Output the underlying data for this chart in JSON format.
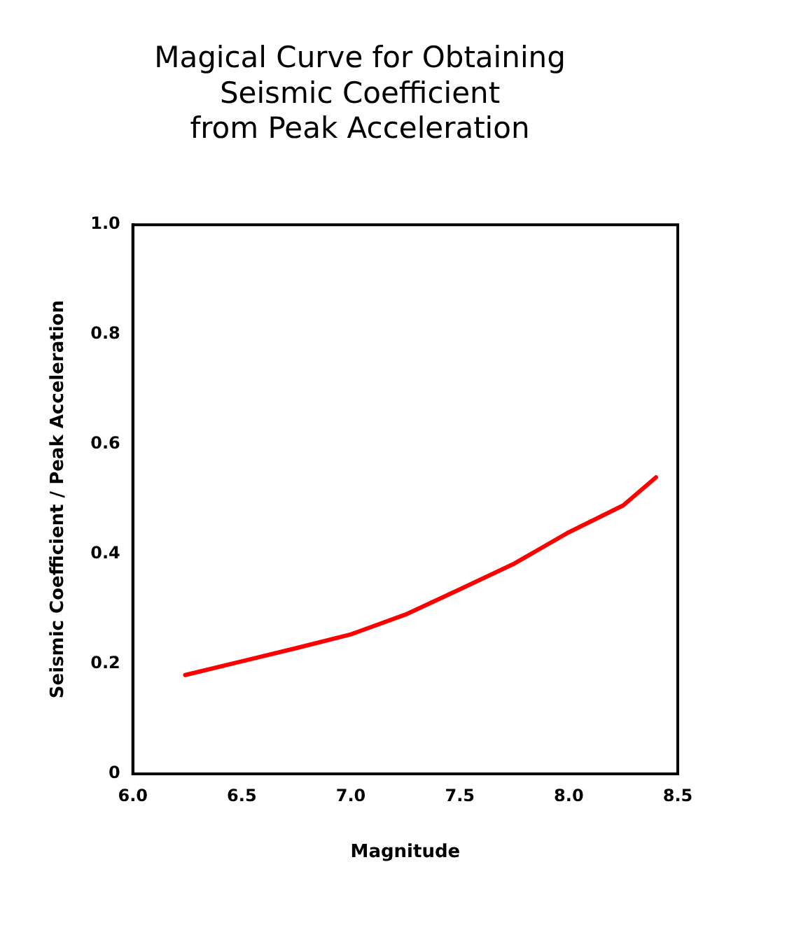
{
  "chart_data": {
    "type": "line",
    "title": "Magical Curve for Obtaining\nSeismic Coefficient\nfrom Peak Acceleration",
    "xlabel": "Magnitude",
    "ylabel": "Seismic Coefficient / Peak Acceleration",
    "x": [
      6.24,
      6.5,
      6.75,
      7.0,
      7.25,
      7.5,
      7.75,
      8.0,
      8.25,
      8.4
    ],
    "series": [
      {
        "color": "#ff0000",
        "values": [
          0.18,
          0.205,
          0.229,
          0.254,
          0.29,
          0.336,
          0.383,
          0.44,
          0.489,
          0.54
        ]
      }
    ],
    "xlim": [
      6.0,
      8.5
    ],
    "xticks": [
      {
        "value": 6,
        "label": "6.0"
      },
      6.5,
      {
        "value": 7,
        "label": "7.0"
      },
      7.5,
      {
        "value": 8,
        "label": "8.0"
      },
      8.5
    ],
    "ylim": [
      0,
      1.0
    ],
    "yticks": [
      0,
      0.2,
      0.4,
      0.6,
      0.8,
      {
        "value": 1,
        "label": "1.0"
      }
    ],
    "grid": false,
    "legend": false,
    "marker": "none",
    "line_style": "solid"
  }
}
